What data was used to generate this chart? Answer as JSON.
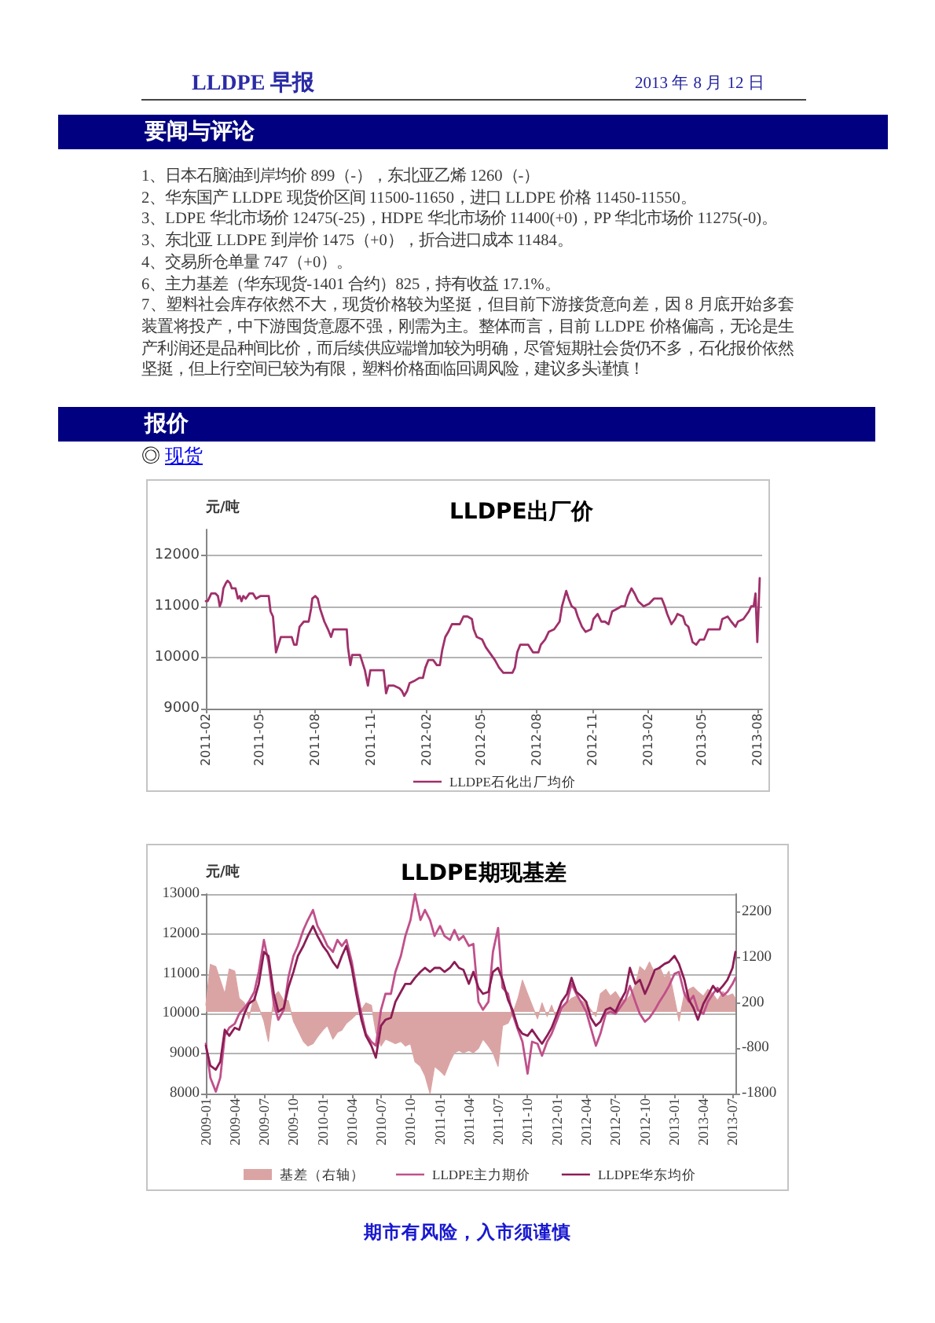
{
  "chart_data": [
    {
      "type": "other",
      "title": "LLDPE 早报",
      "subtitle": "2013 年 8 月 12 日"
    },
    {
      "type": "other",
      "title": "要闻与评论",
      "annotations": [
        "1、日本石脑油到岸均价 899（-），东北亚乙烯 1260（-）",
        "2、华东国产 LLDPE 现货价区间 11500-11650，进口 LLDPE 价格 11450-11550。",
        "3、LDPE 华北市场价 12475(-25)，HDPE 华北市场价 11400(+0)，PP 华北市场价 11275(-0)。",
        "3、东北亚 LLDPE 到岸价 1475（+0），折合进口成本 11484。",
        "4、交易所仓单量 747（+0）。",
        "6、主力基差（华东现货-1401 合约）825，持有收益 17.1%。",
        "7、塑料社会库存依然不大，现货价格较为坚挺，但目前下游接货意向差，因 8 月底开始多套装置将投产，中下游囤货意愿不强，刚需为主。整体而言，目前 LLDPE 价格偏高，无论是生产利润还是品种间比价，而后续供应端增加较为明确，尽管短期社会货仍不多，石化报价依然坚挺，但上行空间已较为有限，塑料价格面临回调风险，建议多头谨慎！"
      ]
    },
    {
      "type": "other",
      "title": "报价",
      "subtitle": "◎ 现货"
    },
    {
      "type": "line",
      "title": "LLDPE出厂价",
      "ylabel": "元/吨",
      "x": [
        "2011-02-01",
        "2011-02-04",
        "2011-02-10",
        "2011-02-17",
        "2011-02-21",
        "2011-02-24",
        "2011-02-27",
        "2011-03-02",
        "2011-03-06",
        "2011-03-09",
        "2011-03-13",
        "2011-03-16",
        "2011-03-22",
        "2011-03-26",
        "2011-03-29",
        "2011-04-01",
        "2011-04-04",
        "2011-04-08",
        "2011-04-14",
        "2011-04-20",
        "2011-04-25",
        "2011-05-02",
        "2011-05-16",
        "2011-05-19",
        "2011-05-23",
        "2011-05-28",
        "2011-06-01",
        "2011-06-05",
        "2011-06-23",
        "2011-06-27",
        "2011-07-01",
        "2011-07-06",
        "2011-07-13",
        "2011-07-21",
        "2011-07-25",
        "2011-07-27",
        "2011-08-01",
        "2011-08-05",
        "2011-08-09",
        "2011-08-16",
        "2011-08-22",
        "2011-08-27",
        "2011-08-31",
        "2011-09-22",
        "2011-09-24",
        "2011-09-28",
        "2011-10-01",
        "2011-10-14",
        "2011-10-18",
        "2011-10-22",
        "2011-10-27",
        "2011-10-31",
        "2011-11-22",
        "2011-11-26",
        "2011-11-30",
        "2011-12-09",
        "2011-12-18",
        "2011-12-22",
        "2011-12-26",
        "2011-12-31",
        "2012-01-04",
        "2012-01-13",
        "2012-01-20",
        "2012-01-26",
        "2012-01-30",
        "2012-02-04",
        "2012-02-12",
        "2012-02-18",
        "2012-02-23",
        "2012-02-27",
        "2012-03-03",
        "2012-03-08",
        "2012-03-14",
        "2012-03-27",
        "2012-04-02",
        "2012-04-09",
        "2012-04-16",
        "2012-04-19",
        "2012-04-24",
        "2012-05-03",
        "2012-05-09",
        "2012-05-18",
        "2012-05-24",
        "2012-05-31",
        "2012-06-07",
        "2012-06-22",
        "2012-06-26",
        "2012-06-30",
        "2012-07-05",
        "2012-07-18",
        "2012-07-26",
        "2012-08-04",
        "2012-08-08",
        "2012-08-15",
        "2012-08-21",
        "2012-08-30",
        "2012-09-08",
        "2012-09-12",
        "2012-09-19",
        "2012-09-23",
        "2012-09-28",
        "2012-10-04",
        "2012-10-08",
        "2012-10-15",
        "2012-10-21",
        "2012-10-30",
        "2012-11-03",
        "2012-11-10",
        "2012-11-16",
        "2012-11-22",
        "2012-11-28",
        "2012-12-04",
        "2012-12-12",
        "2012-12-19",
        "2012-12-25",
        "2012-12-30",
        "2013-01-05",
        "2013-01-10",
        "2013-01-16",
        "2013-01-25",
        "2013-02-03",
        "2013-02-11",
        "2013-02-24",
        "2013-03-01",
        "2013-03-05",
        "2013-03-12",
        "2013-03-18",
        "2013-03-22",
        "2013-03-31",
        "2013-04-04",
        "2013-04-09",
        "2013-04-16",
        "2013-04-22",
        "2013-04-28",
        "2013-05-05",
        "2013-05-12",
        "2013-05-31",
        "2013-06-04",
        "2013-06-13",
        "2013-06-19",
        "2013-06-26",
        "2013-06-30",
        "2013-07-09",
        "2013-07-18",
        "2013-07-22",
        "2013-07-26",
        "2013-07-29",
        "2013-08-01",
        "2013-08-05"
      ],
      "series": [
        {
          "name": "LLDPE石化出厂均价",
          "color": "#a0306a",
          "values": [
            11100,
            11100,
            11250,
            11250,
            11200,
            11000,
            11100,
            11350,
            11450,
            11500,
            11450,
            11350,
            11350,
            11150,
            11200,
            11100,
            11200,
            11150,
            11250,
            11250,
            11150,
            11200,
            11200,
            10900,
            10800,
            10100,
            10250,
            10400,
            10400,
            10250,
            10250,
            10600,
            10700,
            10700,
            10950,
            11150,
            11200,
            11150,
            10950,
            10700,
            10550,
            10400,
            10550,
            10550,
            10200,
            9850,
            10050,
            10050,
            9900,
            9750,
            9450,
            9750,
            9750,
            9300,
            9450,
            9450,
            9400,
            9350,
            9250,
            9350,
            9500,
            9550,
            9600,
            9600,
            9800,
            9950,
            9950,
            9850,
            9850,
            10150,
            10400,
            10500,
            10650,
            10650,
            10800,
            10800,
            10750,
            10550,
            10400,
            10350,
            10200,
            10050,
            9950,
            9800,
            9700,
            9700,
            9800,
            10100,
            10250,
            10250,
            10100,
            10100,
            10250,
            10350,
            10500,
            10550,
            10700,
            11000,
            11300,
            11150,
            11000,
            10950,
            10800,
            10600,
            10500,
            10550,
            10750,
            10850,
            10700,
            10700,
            10650,
            10900,
            10950,
            11000,
            11000,
            11200,
            11350,
            11250,
            11100,
            11000,
            11050,
            11150,
            11150,
            11000,
            10850,
            10650,
            10750,
            10850,
            10800,
            10650,
            10600,
            10300,
            10250,
            10350,
            10350,
            10550,
            10550,
            10750,
            10800,
            10700,
            10600,
            10700,
            10750,
            10900,
            11000,
            11000,
            11250,
            10300,
            11550
          ]
        }
      ],
      "xlim": [
        "2011-02-01",
        "2013-08-09"
      ],
      "xticks": [
        "2011-02",
        "2011-05",
        "2011-08",
        "2011-11",
        "2012-02",
        "2012-05",
        "2012-08",
        "2012-11",
        "2013-02",
        "2013-05",
        "2013-08"
      ],
      "ylim": [
        9000,
        12500
      ],
      "yticks": [
        9000,
        10000,
        11000,
        12000
      ],
      "grid": "y",
      "legend": "bottom"
    },
    {
      "type": "line",
      "title": "LLDPE期现基差",
      "ylabel": "元/吨",
      "x": [
        "2009-01-01",
        "2009-01-15",
        "2009-02-01",
        "2009-02-15",
        "2009-03-01",
        "2009-03-15",
        "2009-04-01",
        "2009-04-15",
        "2009-05-01",
        "2009-05-15",
        "2009-06-01",
        "2009-06-15",
        "2009-07-01",
        "2009-07-15",
        "2009-08-01",
        "2009-08-15",
        "2009-09-01",
        "2009-09-15",
        "2009-10-01",
        "2009-10-15",
        "2009-11-01",
        "2009-11-15",
        "2009-12-01",
        "2009-12-15",
        "2010-01-01",
        "2010-01-15",
        "2010-02-01",
        "2010-02-15",
        "2010-03-01",
        "2010-03-15",
        "2010-04-01",
        "2010-04-15",
        "2010-05-01",
        "2010-05-15",
        "2010-06-01",
        "2010-06-15",
        "2010-07-01",
        "2010-07-15",
        "2010-08-01",
        "2010-08-15",
        "2010-09-01",
        "2010-09-15",
        "2010-10-01",
        "2010-10-15",
        "2010-11-01",
        "2010-11-15",
        "2010-12-01",
        "2010-12-15",
        "2011-01-01",
        "2011-01-15",
        "2011-02-01",
        "2011-02-15",
        "2011-03-01",
        "2011-03-15",
        "2011-04-01",
        "2011-04-15",
        "2011-05-01",
        "2011-05-15",
        "2011-06-01",
        "2011-06-15",
        "2011-07-01",
        "2011-07-15",
        "2011-08-01",
        "2011-08-15",
        "2011-09-01",
        "2011-09-15",
        "2011-10-01",
        "2011-10-15",
        "2011-11-01",
        "2011-11-15",
        "2011-12-01",
        "2011-12-15",
        "2012-01-01",
        "2012-01-15",
        "2012-02-01",
        "2012-02-15",
        "2012-03-01",
        "2012-03-15",
        "2012-04-01",
        "2012-04-15",
        "2012-05-01",
        "2012-05-15",
        "2012-06-01",
        "2012-06-15",
        "2012-07-01",
        "2012-07-15",
        "2012-08-01",
        "2012-08-15",
        "2012-09-01",
        "2012-09-15",
        "2012-10-01",
        "2012-10-15",
        "2012-11-01",
        "2012-11-15",
        "2012-12-01",
        "2012-12-15",
        "2013-01-01",
        "2013-01-15",
        "2013-02-01",
        "2013-02-15",
        "2013-03-01",
        "2013-03-15",
        "2013-04-01",
        "2013-04-15",
        "2013-05-01",
        "2013-05-15",
        "2013-06-01",
        "2013-06-15",
        "2013-07-01",
        "2013-07-10"
      ],
      "series": [
        {
          "name": "基差（右轴）",
          "type": "area",
          "axis": "y2",
          "color": "#dba4a4",
          "values": [
            150,
            1050,
            1000,
            700,
            400,
            950,
            900,
            300,
            200,
            -150,
            350,
            100,
            -200,
            -650,
            350,
            450,
            250,
            250,
            -200,
            -400,
            -650,
            -750,
            -700,
            -550,
            -400,
            -300,
            -600,
            -450,
            -400,
            -250,
            -150,
            -50,
            50,
            200,
            150,
            -450,
            -750,
            -600,
            -650,
            -700,
            -650,
            -750,
            -700,
            -1100,
            -1200,
            -1400,
            -1800,
            -1200,
            -1300,
            -1400,
            -1100,
            -900,
            -850,
            -900,
            -850,
            -900,
            -800,
            -600,
            -750,
            -900,
            -1200,
            -300,
            -250,
            -50,
            300,
            700,
            400,
            150,
            -150,
            200,
            -100,
            150,
            -200,
            100,
            200,
            300,
            350,
            250,
            200,
            50,
            -100,
            400,
            500,
            350,
            450,
            300,
            250,
            350,
            600,
            1000,
            900,
            1100,
            850,
            1000,
            750,
            900,
            300,
            -200,
            400,
            500,
            550,
            450,
            350,
            500,
            400,
            250,
            450,
            350,
            400,
            300
          ]
        },
        {
          "name": "LLDPE主力期价",
          "color": "#c0508a",
          "values": [
            9250,
            8400,
            8050,
            8400,
            9450,
            9650,
            9750,
            10000,
            10150,
            10300,
            10550,
            11050,
            11850,
            11300,
            10250,
            9850,
            10100,
            10900,
            11450,
            11700,
            12100,
            12350,
            12600,
            12200,
            11950,
            11700,
            11550,
            11850,
            11700,
            11850,
            11300,
            10650,
            10000,
            9500,
            9300,
            9200,
            10100,
            10500,
            10500,
            11050,
            11450,
            11950,
            12350,
            13000,
            12350,
            12600,
            12350,
            11950,
            12200,
            11950,
            11850,
            12100,
            11850,
            11950,
            11700,
            11750,
            10300,
            10100,
            10300,
            11550,
            12150,
            10650,
            10500,
            10000,
            9600,
            9300,
            8500,
            9300,
            9250,
            8950,
            9300,
            9500,
            9850,
            10150,
            10300,
            10750,
            10500,
            10300,
            10050,
            9650,
            9200,
            9500,
            10000,
            10050,
            10000,
            10150,
            10350,
            10700,
            10300,
            10000,
            9800,
            9900,
            10100,
            10300,
            10500,
            10700,
            11000,
            11050,
            10500,
            10300,
            10450,
            10100,
            10000,
            10300,
            10500,
            10650,
            10450,
            10550,
            10750,
            10900
          ]
        },
        {
          "name": "LLDPE华东均价",
          "color": "#8b1d55",
          "values": [
            9200,
            8700,
            8600,
            8800,
            9600,
            9450,
            9650,
            9600,
            10000,
            10250,
            10350,
            10750,
            11550,
            11450,
            10500,
            10050,
            10150,
            10650,
            11050,
            11450,
            11700,
            11950,
            12200,
            11950,
            11700,
            11550,
            11300,
            11150,
            11450,
            11700,
            11150,
            10500,
            9850,
            9450,
            9200,
            8900,
            9700,
            9850,
            9900,
            10300,
            10550,
            10750,
            10750,
            10900,
            11050,
            11150,
            11050,
            11150,
            11150,
            11050,
            11150,
            11300,
            11150,
            11100,
            10750,
            11050,
            10650,
            10500,
            10550,
            11050,
            11150,
            10850,
            10350,
            10100,
            9650,
            9500,
            9450,
            9600,
            9400,
            9250,
            9450,
            9650,
            10000,
            10300,
            10500,
            10900,
            10550,
            10450,
            10300,
            9900,
            9700,
            9800,
            10100,
            10150,
            10050,
            10300,
            10550,
            11150,
            10750,
            10850,
            10500,
            10750,
            11100,
            11150,
            11250,
            11300,
            11450,
            11250,
            10850,
            10350,
            10150,
            9850,
            10250,
            10450,
            10700,
            10550,
            10700,
            10850,
            11150,
            11550
          ]
        }
      ],
      "xlim": [
        "2009-01-01",
        "2013-07-10"
      ],
      "xticks": [
        "2009-01",
        "2009-04",
        "2009-07",
        "2009-10",
        "2010-01",
        "2010-04",
        "2010-07",
        "2010-10",
        "2011-01",
        "2011-04",
        "2011-07",
        "2011-10",
        "2012-01",
        "2012-04",
        "2012-07",
        "2012-10",
        "2013-01",
        "2013-04",
        "2013-07"
      ],
      "ylim": [
        8000,
        13000
      ],
      "yticks": [
        8000,
        9000,
        10000,
        11000,
        12000,
        13000
      ],
      "y2lim": [
        -1800,
        2600
      ],
      "y2ticks": [
        -1800,
        -800,
        200,
        1200,
        2200
      ],
      "grid": "y",
      "legend": "bottom"
    },
    {
      "type": "other",
      "title": "期市有风险，入市须谨慎"
    }
  ]
}
